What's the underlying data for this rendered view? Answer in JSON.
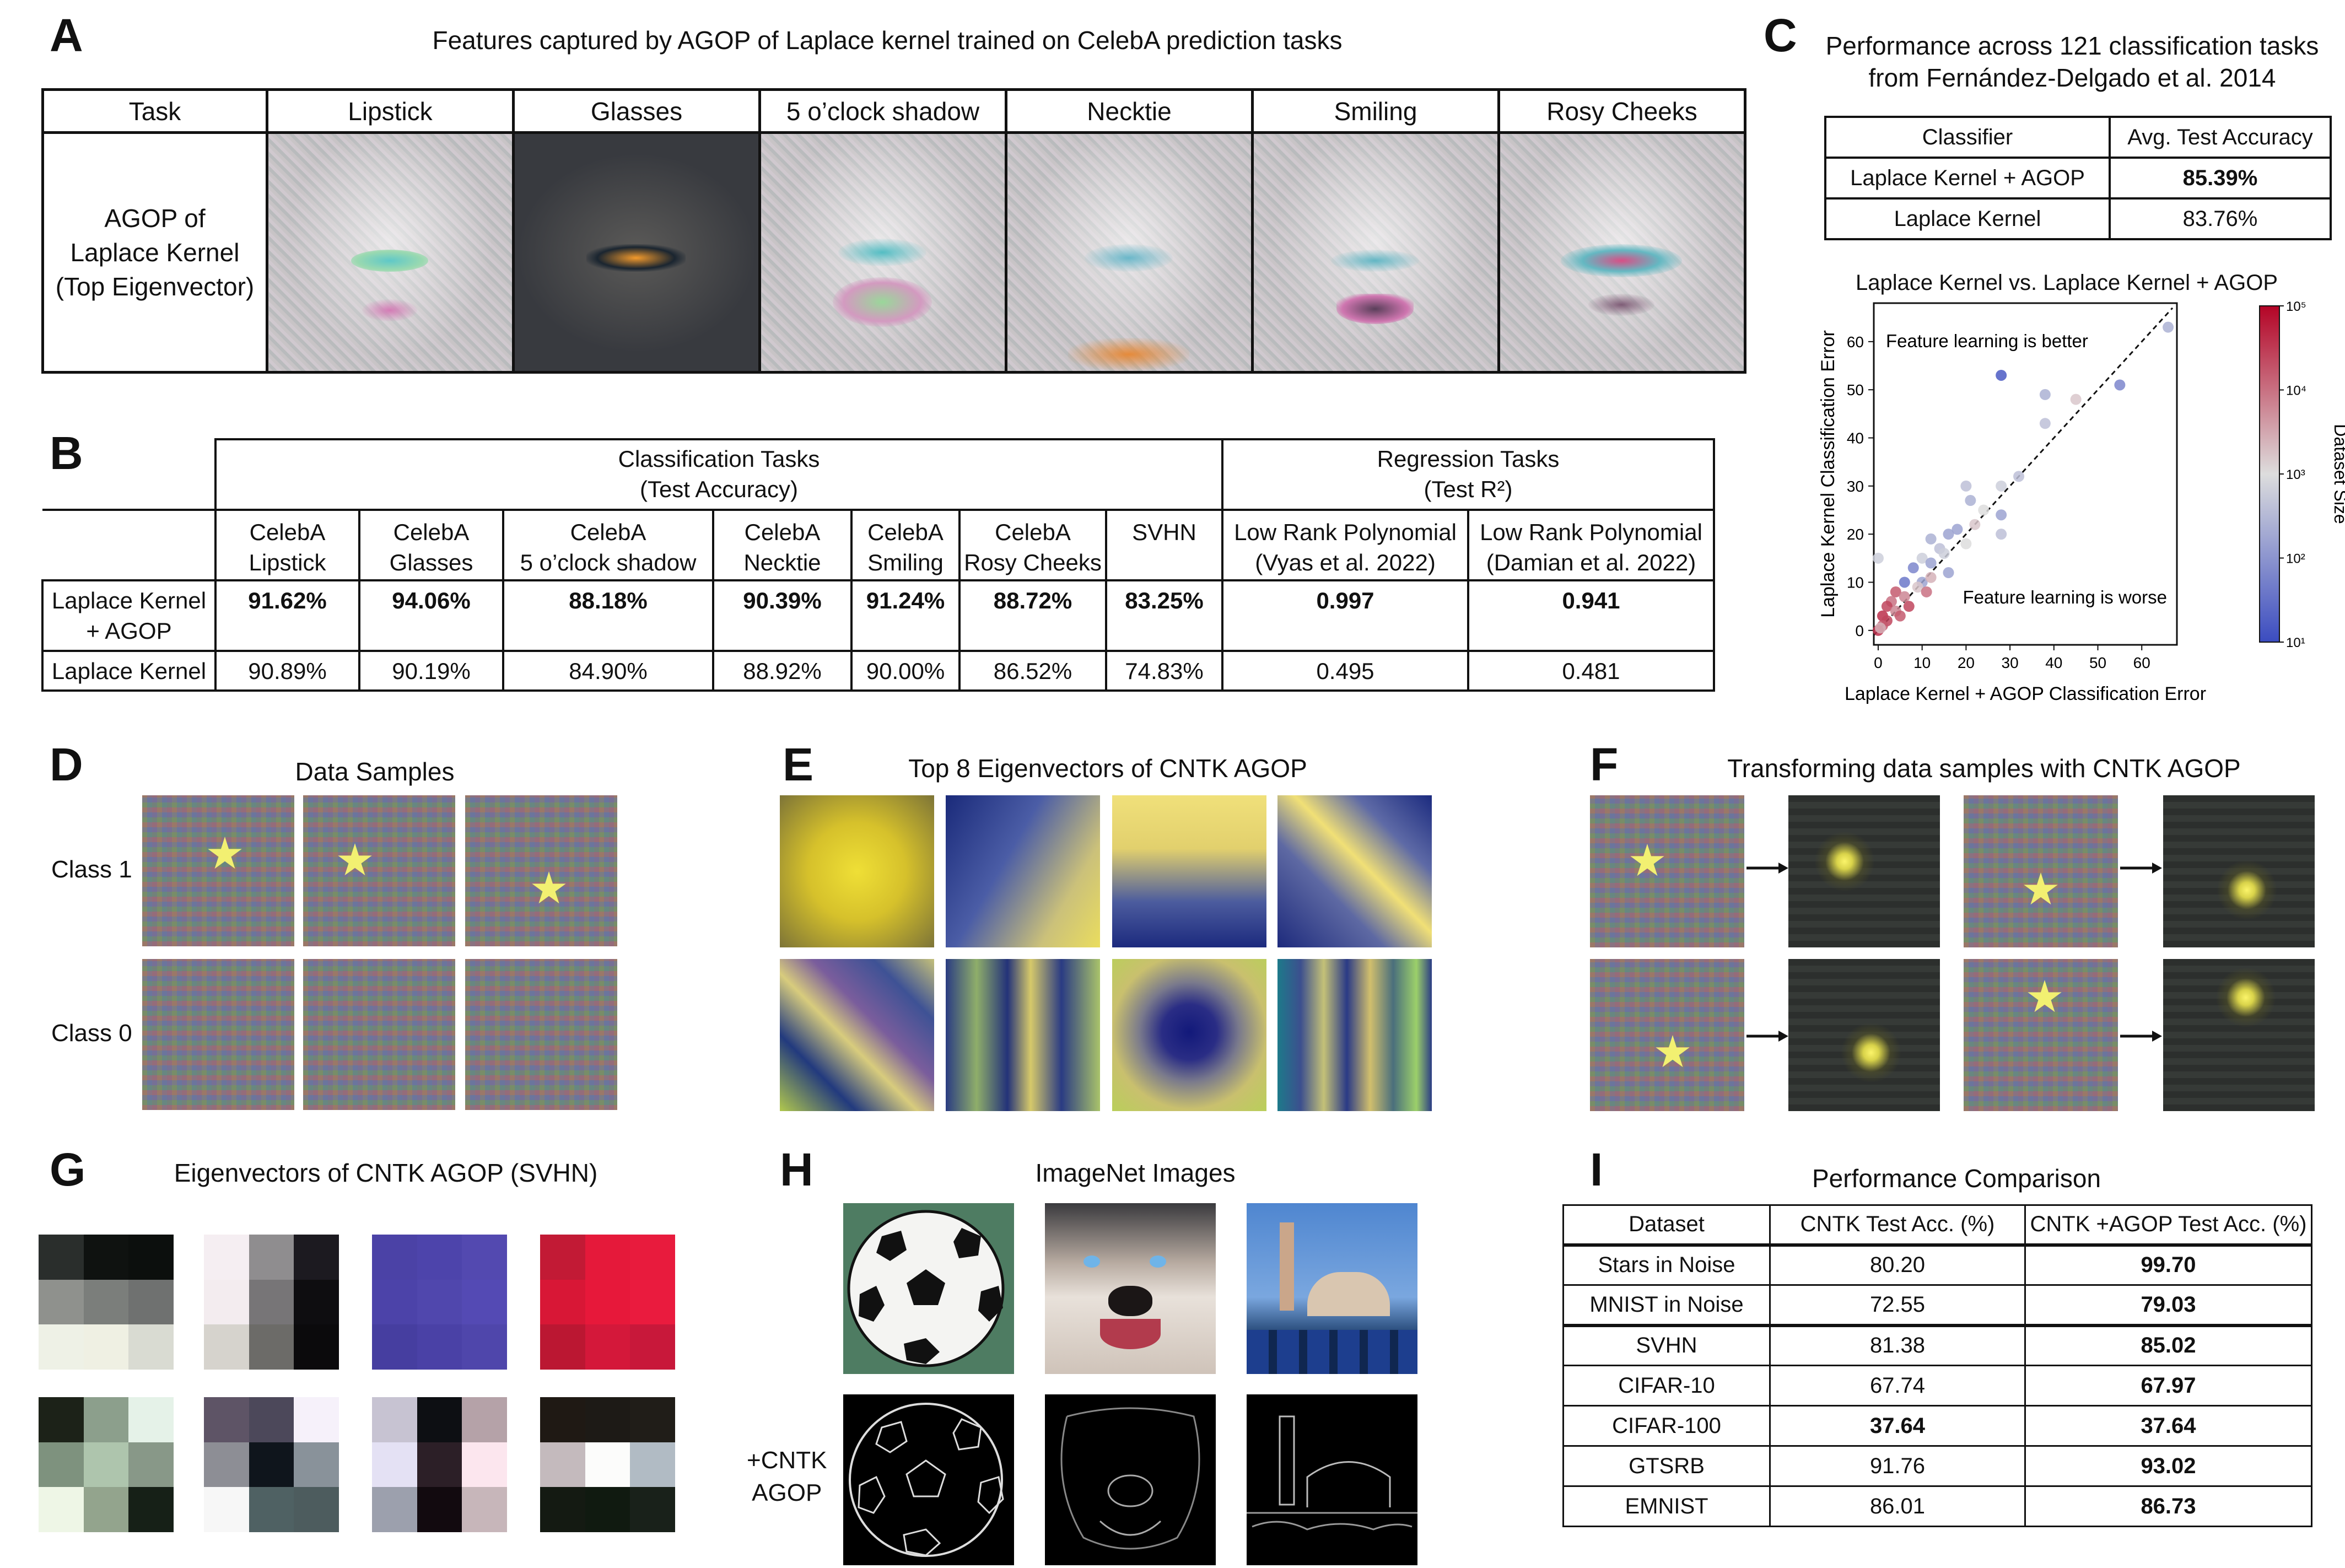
{
  "panelA": {
    "label": "A",
    "title": "Features captured by AGOP of Laplace kernel trained on CelebA prediction tasks",
    "header": [
      "Task",
      "Lipstick",
      "Glasses",
      "5 o’clock shadow",
      "Necktie",
      "Smiling",
      "Rosy Cheeks"
    ],
    "row_label": [
      "AGOP of",
      "Laplace Kernel",
      "(Top Eigenvector)"
    ]
  },
  "panelB": {
    "label": "B",
    "group_classification": [
      "Classification Tasks",
      "(Test Accuracy)"
    ],
    "group_regression": [
      "Regression Tasks",
      "(Test R²)"
    ],
    "columns": [
      [
        "CelebA",
        "Lipstick"
      ],
      [
        "CelebA",
        "Glasses"
      ],
      [
        "CelebA",
        "5 o’clock shadow"
      ],
      [
        "CelebA",
        "Necktie"
      ],
      [
        "CelebA",
        "Smiling"
      ],
      [
        "CelebA",
        "Rosy Cheeks"
      ],
      [
        "SVHN",
        ""
      ],
      [
        "Low Rank Polynomial",
        "(Vyas et al. 2022)"
      ],
      [
        "Low Rank Polynomial",
        "(Damian et al. 2022)"
      ]
    ],
    "rows": [
      {
        "label": [
          "Laplace Kernel",
          "+ AGOP"
        ],
        "values": [
          "91.62%",
          "94.06%",
          "88.18%",
          "90.39%",
          "91.24%",
          "88.72%",
          "83.25%",
          "0.997",
          "0.941"
        ]
      },
      {
        "label": [
          "Laplace Kernel",
          ""
        ],
        "values": [
          "90.89%",
          "90.19%",
          "84.90%",
          "88.92%",
          "90.00%",
          "86.52%",
          "74.83%",
          "0.495",
          "0.481"
        ]
      }
    ]
  },
  "panelC": {
    "label": "C",
    "title": [
      "Performance across 121 classification tasks",
      "from Fernández-Delgado et al. 2014"
    ],
    "header": [
      "Classifier",
      "Avg. Test Accuracy"
    ],
    "rows": [
      {
        "name": "Laplace Kernel + AGOP",
        "value": "85.39%"
      },
      {
        "name": "Laplace Kernel",
        "value": "83.76%"
      }
    ],
    "plot_title": "Laplace Kernel vs. Laplace Kernel + AGOP"
  },
  "chart_data": {
    "type": "scatter",
    "title": "Laplace Kernel vs. Laplace Kernel + AGOP",
    "xlabel": "Laplace Kernel + AGOP Classification Error",
    "ylabel": "Laplace Kernel Classification Error",
    "xlim": [
      -1,
      68
    ],
    "ylim": [
      -3,
      68
    ],
    "x_ticks": [
      0,
      10,
      20,
      30,
      40,
      50,
      60
    ],
    "y_ticks": [
      0,
      10,
      20,
      30,
      40,
      50,
      60
    ],
    "annotations": [
      "Feature learning is better",
      "Feature learning is worse"
    ],
    "colorbar": {
      "label": "Dataset Size",
      "ticks": [
        "10¹",
        "10²",
        "10³",
        "10⁴",
        "10⁵"
      ],
      "low_color": "#3b4cc0",
      "mid_color": "#dddddd",
      "high_color": "#b40426"
    },
    "points": [
      {
        "x": 66,
        "y": 63,
        "c": 0.35
      },
      {
        "x": 55,
        "y": 51,
        "c": 0.2
      },
      {
        "x": 28,
        "y": 53,
        "c": 0.05
      },
      {
        "x": 38,
        "y": 49,
        "c": 0.35
      },
      {
        "x": 45,
        "y": 48,
        "c": 0.55
      },
      {
        "x": 38,
        "y": 43,
        "c": 0.4
      },
      {
        "x": 32,
        "y": 32,
        "c": 0.4
      },
      {
        "x": 28,
        "y": 30,
        "c": 0.45
      },
      {
        "x": 20,
        "y": 30,
        "c": 0.4
      },
      {
        "x": 21,
        "y": 27,
        "c": 0.35
      },
      {
        "x": 24,
        "y": 25,
        "c": 0.5
      },
      {
        "x": 28,
        "y": 24,
        "c": 0.3
      },
      {
        "x": 18,
        "y": 21,
        "c": 0.3
      },
      {
        "x": 16,
        "y": 20,
        "c": 0.3
      },
      {
        "x": 12,
        "y": 19,
        "c": 0.35
      },
      {
        "x": 28,
        "y": 20,
        "c": 0.4
      },
      {
        "x": 20,
        "y": 18,
        "c": 0.5
      },
      {
        "x": 14,
        "y": 17,
        "c": 0.4
      },
      {
        "x": 10,
        "y": 15,
        "c": 0.45
      },
      {
        "x": 12,
        "y": 14,
        "c": 0.3
      },
      {
        "x": 8,
        "y": 13,
        "c": 0.2
      },
      {
        "x": 16,
        "y": 12,
        "c": 0.3
      },
      {
        "x": 6,
        "y": 10,
        "c": 0.15
      },
      {
        "x": 10,
        "y": 10,
        "c": 0.3
      },
      {
        "x": 12,
        "y": 11,
        "c": 0.6
      },
      {
        "x": 4,
        "y": 8,
        "c": 0.8
      },
      {
        "x": 6,
        "y": 7,
        "c": 0.7
      },
      {
        "x": 3,
        "y": 6,
        "c": 0.75
      },
      {
        "x": 2,
        "y": 5,
        "c": 0.85
      },
      {
        "x": 4,
        "y": 4,
        "c": 0.7
      },
      {
        "x": 1,
        "y": 3,
        "c": 0.9
      },
      {
        "x": 2,
        "y": 2,
        "c": 0.85
      },
      {
        "x": 1,
        "y": 1,
        "c": 0.8
      },
      {
        "x": 0,
        "y": 0,
        "c": 0.9
      },
      {
        "x": 0.5,
        "y": 0.5,
        "c": 0.6
      },
      {
        "x": 9,
        "y": 9,
        "c": 0.55
      },
      {
        "x": 15,
        "y": 16,
        "c": 0.45
      },
      {
        "x": 22,
        "y": 22,
        "c": 0.55
      },
      {
        "x": 7,
        "y": 5,
        "c": 0.85
      },
      {
        "x": 11,
        "y": 8,
        "c": 0.75
      },
      {
        "x": 5,
        "y": 3,
        "c": 0.8
      },
      {
        "x": 0,
        "y": 15,
        "c": 0.45
      }
    ]
  },
  "panelD": {
    "label": "D",
    "title": "Data Samples",
    "class1": "Class 1",
    "class0": "Class 0"
  },
  "panelE": {
    "label": "E",
    "title": "Top 8 Eigenvectors of CNTK AGOP"
  },
  "panelF": {
    "label": "F",
    "title": "Transforming data samples with CNTK AGOP"
  },
  "panelG": {
    "label": "G",
    "title": "Eigenvectors of CNTK AGOP (SVHN)",
    "patches": [
      [
        "#2a2e2c",
        "#0f1210",
        "#0c0f0d",
        "#8f918d",
        "#7b7e7b",
        "#6f7170",
        "#eef1e6",
        "#eff0e3",
        "#d9dbd2"
      ],
      [
        "#f5eef2",
        "#8f8d8f",
        "#1c1a20",
        "#f3ecef",
        "#777577",
        "#0e0d10",
        "#d6d3cd",
        "#6c6b68",
        "#0b0a0c"
      ],
      [
        "#4b42a6",
        "#4d44ab",
        "#5349b0",
        "#4c43a9",
        "#5047ad",
        "#544ab4",
        "#463ea0",
        "#4a41a6",
        "#4f46ab"
      ],
      [
        "#c21a35",
        "#e5193a",
        "#e81b3d",
        "#d81736",
        "#e7183a",
        "#ea1b3e",
        "#bb1732",
        "#d4183a",
        "#c8183a"
      ],
      [
        "#1c2218",
        "#8c9f8c",
        "#e5f2e8",
        "#7e927e",
        "#aec5ad",
        "#889888",
        "#eef6e6",
        "#93a48d",
        "#162017"
      ],
      [
        "#5e5466",
        "#4c485a",
        "#f6f1fa",
        "#8d8e95",
        "#0f151c",
        "#89929a",
        "#f7f7f7",
        "#4f6163",
        "#4d5c5e"
      ],
      [
        "#c7c3d2",
        "#0d0f13",
        "#b5a2a8",
        "#e4e1f4",
        "#2c1f27",
        "#fce6ee",
        "#9ca0ad",
        "#120a0f",
        "#c7b6ba"
      ],
      [
        "#1f1914",
        "#1d1a16",
        "#201d18",
        "#c4babd",
        "#fcfcfb",
        "#b1bbc4",
        "#141a12",
        "#101a10",
        "#19211a"
      ]
    ]
  },
  "panelH": {
    "label": "H",
    "title": "ImageNet Images",
    "row2_label": [
      "+CNTK",
      "AGOP"
    ]
  },
  "panelI": {
    "label": "I",
    "title": "Performance Comparison",
    "header": [
      "Dataset",
      "CNTK Test Acc. (%)",
      "CNTK +AGOP Test Acc. (%)"
    ],
    "rows": [
      {
        "dataset": "Stars in Noise",
        "cntk": "80.20",
        "agop": "99.70",
        "bold_cntk": false,
        "bold_agop": true
      },
      {
        "dataset": "MNIST in Noise",
        "cntk": "72.55",
        "agop": "79.03",
        "bold_cntk": false,
        "bold_agop": true
      },
      {
        "dataset": "SVHN",
        "cntk": "81.38",
        "agop": "85.02",
        "bold_cntk": false,
        "bold_agop": true
      },
      {
        "dataset": "CIFAR-10",
        "cntk": "67.74",
        "agop": "67.97",
        "bold_cntk": false,
        "bold_agop": true
      },
      {
        "dataset": "CIFAR-100",
        "cntk": "37.64",
        "agop": "37.64",
        "bold_cntk": true,
        "bold_agop": true
      },
      {
        "dataset": "GTSRB",
        "cntk": "91.76",
        "agop": "93.02",
        "bold_cntk": false,
        "bold_agop": true
      },
      {
        "dataset": "EMNIST",
        "cntk": "86.01",
        "agop": "86.73",
        "bold_cntk": false,
        "bold_agop": true
      }
    ]
  }
}
